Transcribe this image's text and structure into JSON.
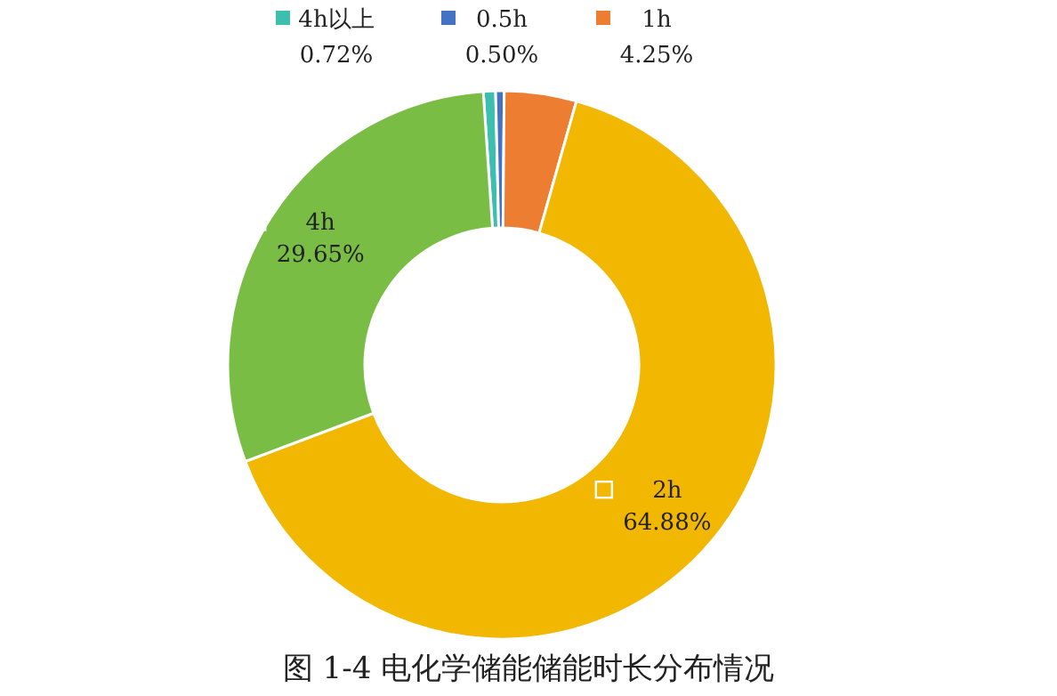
{
  "chart_data": {
    "type": "donut",
    "title": "图 1-4 电化学储能储能时长分布情况",
    "categories": [
      "4h以上",
      "0.5h",
      "1h",
      "2h",
      "4h"
    ],
    "values": [
      0.72,
      0.5,
      4.25,
      64.88,
      29.65
    ],
    "colors": [
      "#3cbfae",
      "#4472c4",
      "#ed7d31",
      "#f2b700",
      "#7abd44"
    ],
    "value_labels": [
      "0.72%",
      "0.50%",
      "4.25%",
      "64.88%",
      "29.65%"
    ],
    "legend": "top"
  }
}
